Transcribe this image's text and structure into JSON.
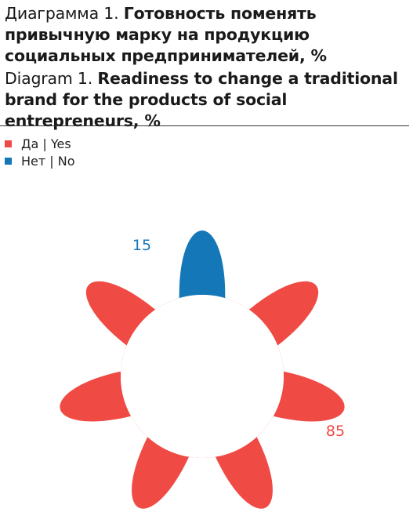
{
  "title": {
    "ru_prefix": "Диаграмма 1.",
    "ru_lines": [
      "Готовность поменять",
      "привычную марку на продукцию",
      "социальных предпринимателей, %"
    ],
    "en_prefix": "Diagram 1.",
    "en_lines": [
      "Readiness to change a traditional",
      "brand for the products of social entrepreneurs, %"
    ]
  },
  "legend": [
    {
      "label": "Да  |  Yes",
      "color": "#f04a45"
    },
    {
      "label": "Нет  |  No",
      "color": "#1478b8"
    }
  ],
  "chart_data": {
    "type": "pie",
    "variant": "flower-donut",
    "series": [
      {
        "name": "Да | Yes",
        "value": 85,
        "color": "#f04a45",
        "data_label": "85"
      },
      {
        "name": "Нет | No",
        "value": 15,
        "color": "#1478b8",
        "data_label": "15"
      }
    ],
    "legend_position": "top-left"
  }
}
